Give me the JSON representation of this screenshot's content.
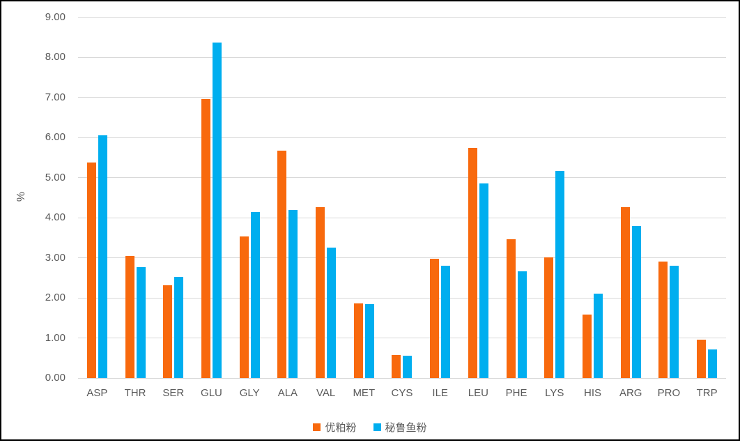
{
  "chart_data": {
    "type": "bar",
    "title": "",
    "xlabel": "",
    "ylabel": "%",
    "ylim": [
      0,
      9
    ],
    "ytick_step": 1,
    "ytick_decimals": 2,
    "grid": true,
    "legend_position": "bottom",
    "categories": [
      "ASP",
      "THR",
      "SER",
      "GLU",
      "GLY",
      "ALA",
      "VAL",
      "MET",
      "CYS",
      "ILE",
      "LEU",
      "PHE",
      "LYS",
      "HIS",
      "ARG",
      "PRO",
      "TRP"
    ],
    "series": [
      {
        "name": "优粕粉",
        "color": "#F8690D",
        "values": [
          5.38,
          3.05,
          2.31,
          6.97,
          3.54,
          5.68,
          4.26,
          1.86,
          0.57,
          2.98,
          5.75,
          3.47,
          3.02,
          1.58,
          4.26,
          2.91,
          0.96
        ]
      },
      {
        "name": "秘鲁鱼粉",
        "color": "#00AEEF",
        "values": [
          6.05,
          2.76,
          2.52,
          8.37,
          4.14,
          4.19,
          3.26,
          1.84,
          0.56,
          2.8,
          4.86,
          2.66,
          5.17,
          2.1,
          3.79,
          2.8,
          0.72
        ]
      }
    ]
  },
  "colors": {
    "background": "#FFFFFF",
    "frame_border": "#000000",
    "gridline": "#D9D9D9",
    "axis_text": "#595959"
  }
}
